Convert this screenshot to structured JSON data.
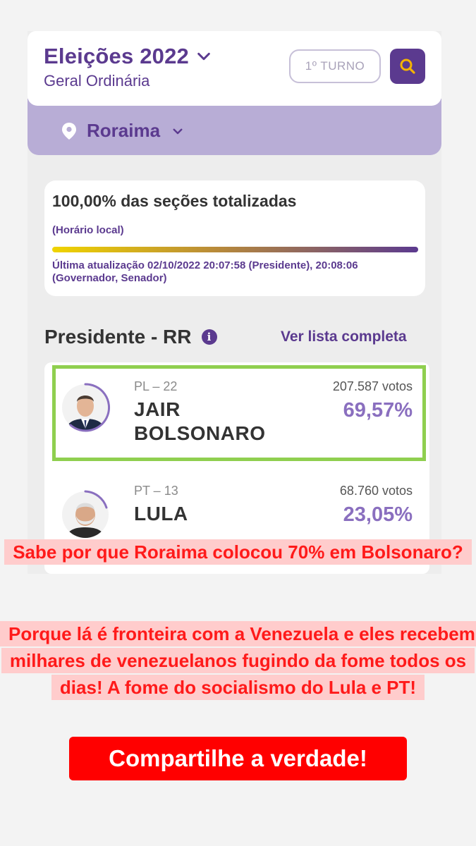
{
  "header": {
    "title": "Eleições 2022",
    "subtitle": "Geral Ordinária",
    "turno_label": "1º TURNO"
  },
  "location": {
    "state": "Roraima"
  },
  "status_card": {
    "title": "100,00% das seções totalizadas",
    "time_note": "(Horário local)",
    "progress_percent": 100,
    "update_text": "Última atualização 02/10/2022 20:07:58 (Presidente), 20:08:06 (Governador, Senador)"
  },
  "section": {
    "title": "Presidente - RR",
    "info_glyph": "i",
    "see_all": "Ver lista completa"
  },
  "candidates": [
    {
      "party": "PL – 22",
      "name": "JAIR BOLSONARO",
      "votes": "207.587 votos",
      "percent": "69,57%",
      "percent_value": 69.57
    },
    {
      "party": "PT – 13",
      "name": "LULA",
      "votes": "68.760 votos",
      "percent": "23,05%",
      "percent_value": 23.05
    }
  ],
  "overlay": {
    "caption1": "Sabe por que Roraima colocou 70% em Bolsonaro?",
    "caption2": "Porque lá é fronteira com a Venezuela e eles recebem milhares de venezuelanos fugindo da fome todos os dias! A fome do socialismo do Lula e PT!",
    "cta": "Compartilhe a verdade!"
  },
  "colors": {
    "brand_purple": "#5b3a8f",
    "state_bar": "#b8add6",
    "highlight_green": "#8fcf4f",
    "caption_red": "#ff1a1a",
    "cta_red": "#ff0000"
  }
}
